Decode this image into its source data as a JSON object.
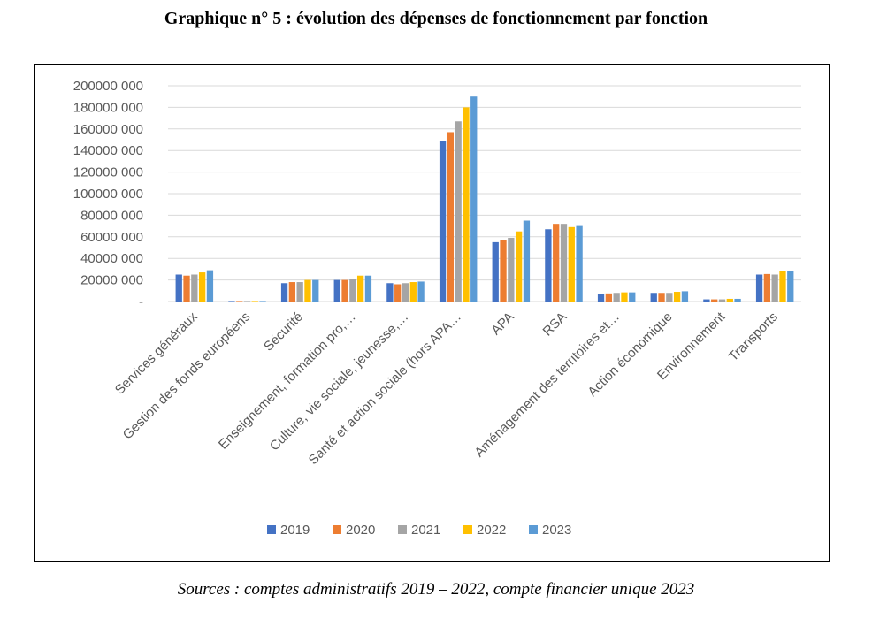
{
  "title": "Graphique n° 5 :  évolution des dépenses de fonctionnement par fonction",
  "source": "Sources : comptes administratifs 2019 – 2022, compte financier unique 2023",
  "chart_data": {
    "type": "bar",
    "title": "",
    "xlabel": "",
    "ylabel": "",
    "ylim": [
      0,
      200000000
    ],
    "yticks": [
      0,
      20000000,
      40000000,
      60000000,
      80000000,
      100000000,
      120000000,
      140000000,
      160000000,
      180000000,
      200000000
    ],
    "ytick_labels": [
      "-",
      "20000 000",
      "40000 000",
      "60000 000",
      "80000 000",
      "100000 000",
      "120000 000",
      "140000 000",
      "160000 000",
      "180000 000",
      "200000 000"
    ],
    "grid": true,
    "legend_position": "bottom",
    "categories": [
      "Services généraux",
      "Gestion des fonds européens",
      "Sécurité",
      "Enseignement, formation pro,…",
      "Culture, vie sociale, jeunesse,…",
      "Santé et action sociale (hors APA…",
      "APA",
      "RSA",
      "Aménagement des territoires et…",
      "Action économique",
      "Environnement",
      "Transports"
    ],
    "series": [
      {
        "name": "2019",
        "color": "#4472c4",
        "values": [
          25000000,
          300000,
          17000000,
          20000000,
          17000000,
          149000000,
          55000000,
          67000000,
          7000000,
          8000000,
          2000000,
          25000000
        ]
      },
      {
        "name": "2020",
        "color": "#ed7d31",
        "values": [
          24000000,
          300000,
          18000000,
          20000000,
          16000000,
          157000000,
          57000000,
          72000000,
          7500000,
          8000000,
          2000000,
          25500000
        ]
      },
      {
        "name": "2021",
        "color": "#a5a5a5",
        "values": [
          25000000,
          300000,
          18000000,
          21000000,
          17000000,
          167000000,
          59000000,
          72000000,
          8000000,
          8000000,
          2000000,
          25000000
        ]
      },
      {
        "name": "2022",
        "color": "#ffc000",
        "values": [
          27000000,
          300000,
          20000000,
          24000000,
          18000000,
          180000000,
          65000000,
          69000000,
          8500000,
          9000000,
          2500000,
          28000000
        ]
      },
      {
        "name": "2023",
        "color": "#5b9bd5",
        "values": [
          29000000,
          300000,
          20000000,
          24000000,
          18500000,
          190000000,
          75000000,
          70000000,
          8500000,
          9500000,
          2500000,
          28000000
        ]
      }
    ]
  }
}
